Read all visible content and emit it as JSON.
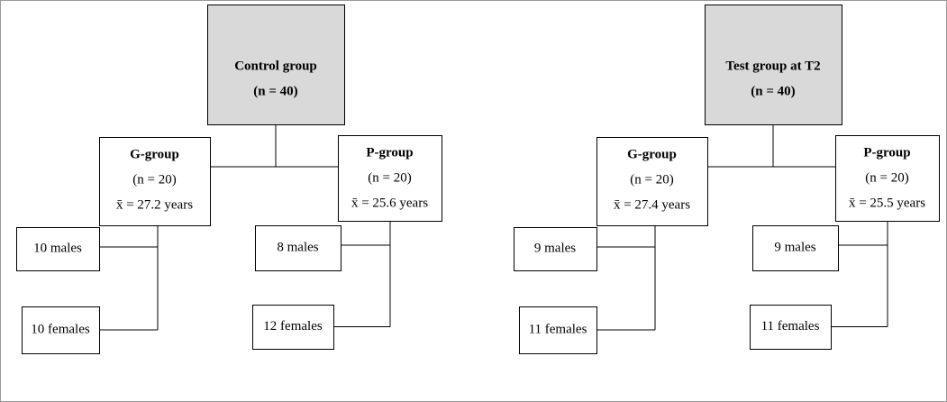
{
  "trees": [
    {
      "root": {
        "title": "Control group",
        "n": "(n = 40)"
      },
      "groups": [
        {
          "name": "G-group",
          "n": "(n = 20)",
          "mean": "x̄ = 27.2 years",
          "males": "10 males",
          "females": "10 females"
        },
        {
          "name": "P-group",
          "n": "(n = 20)",
          "mean": "x̄ = 25.6 years",
          "males": "8 males",
          "females": "12 females"
        }
      ]
    },
    {
      "root": {
        "title": "Test group at T2",
        "n": "(n = 40)"
      },
      "groups": [
        {
          "name": "G-group",
          "n": "(n = 20)",
          "mean": "x̄ = 27.4 years",
          "males": "9 males",
          "females": "11 females"
        },
        {
          "name": "P-group",
          "n": "(n = 20)",
          "mean": "x̄ = 25.5 years",
          "males": "9 males",
          "females": "11 females"
        }
      ]
    }
  ]
}
